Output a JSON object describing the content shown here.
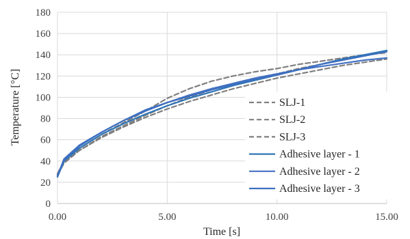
{
  "chart_data": {
    "type": "line",
    "title": "",
    "xlabel": "Time [s]",
    "ylabel": "Temperature [°C]",
    "xlim": [
      0,
      15
    ],
    "ylim": [
      0,
      180
    ],
    "x_ticks": [
      "0.00",
      "5.00",
      "10.00",
      "15.00"
    ],
    "y_ticks": [
      "0",
      "20",
      "40",
      "60",
      "80",
      "100",
      "120",
      "140",
      "160",
      "180"
    ],
    "grid": true,
    "legend_position": "right",
    "series": [
      {
        "name": "SLJ-1",
        "style": "dashed",
        "color": "#7f7f7f",
        "x": [
          0,
          0.3,
          1,
          2,
          3,
          4,
          5,
          6,
          7,
          8,
          9,
          10,
          11,
          12,
          13,
          14,
          15
        ],
        "y": [
          27,
          38,
          50,
          62,
          72,
          81,
          89,
          96,
          102,
          108,
          113,
          118,
          122,
          126,
          130,
          133,
          136
        ]
      },
      {
        "name": "SLJ-2",
        "style": "dashed",
        "color": "#7f7f7f",
        "x": [
          0,
          0.3,
          1,
          2,
          3,
          4,
          5,
          6,
          7,
          8,
          9,
          10,
          11,
          12,
          13,
          14,
          15
        ],
        "y": [
          28,
          40,
          52,
          65,
          76,
          87,
          99,
          108,
          115,
          120,
          124,
          127,
          131,
          134,
          137,
          140,
          142
        ]
      },
      {
        "name": "SLJ-3",
        "style": "dashed",
        "color": "#7f7f7f",
        "x": [
          0,
          0.3,
          1,
          2,
          3,
          4,
          5,
          6,
          7,
          8,
          9,
          10,
          11,
          12,
          13,
          14,
          15
        ],
        "y": [
          28,
          39,
          50,
          63,
          73,
          83,
          92,
          100,
          107,
          113,
          118,
          122,
          127,
          131,
          136,
          140,
          143
        ]
      },
      {
        "name": "Adhesive layer - 1",
        "style": "solid",
        "color": "#2e75b6",
        "x": [
          0,
          0.3,
          1,
          2,
          3,
          4,
          5,
          6,
          7,
          8,
          9,
          10,
          11,
          12,
          13,
          14,
          15
        ],
        "y": [
          25,
          40,
          52,
          65,
          75,
          84,
          92,
          99,
          105,
          111,
          116,
          121,
          126,
          131,
          136,
          140,
          144
        ]
      },
      {
        "name": "Adhesive layer - 2",
        "style": "solid",
        "color": "#4472c4",
        "x": [
          0,
          0.3,
          1,
          2,
          3,
          4,
          5,
          6,
          7,
          8,
          9,
          10,
          11,
          12,
          13,
          14,
          15
        ],
        "y": [
          26,
          42,
          55,
          67,
          78,
          87,
          95,
          102,
          108,
          113,
          118,
          122,
          126,
          129,
          132,
          135,
          137
        ]
      },
      {
        "name": "Adhesive layer - 3",
        "style": "solid",
        "color": "#3d6fc0",
        "x": [
          0,
          0.3,
          1,
          2,
          3,
          4,
          5,
          6,
          7,
          8,
          9,
          10,
          11,
          12,
          13,
          14,
          15
        ],
        "y": [
          26,
          41,
          54,
          67,
          78,
          88,
          95,
          101,
          107,
          112,
          117,
          121,
          126,
          131,
          135,
          139,
          143
        ]
      }
    ]
  }
}
